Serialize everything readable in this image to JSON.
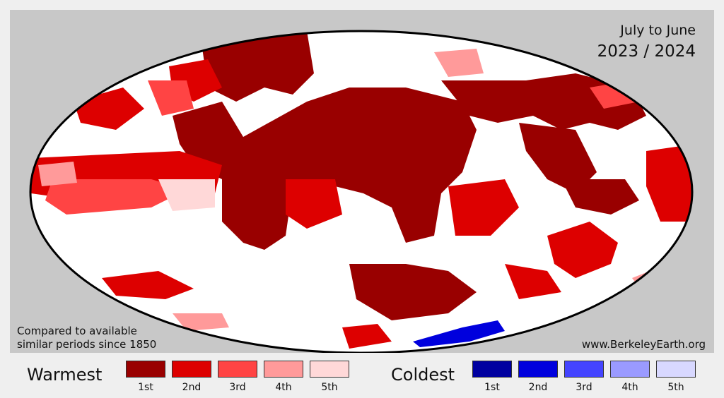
{
  "header": {
    "period": "July to June",
    "years": "2023 / 2024"
  },
  "footer": {
    "note_line1": "Compared to available",
    "note_line2": "similar periods since 1850",
    "website": "www.BerkeleyEarth.org"
  },
  "legend": {
    "warm_title": "Warmest",
    "cold_title": "Coldest",
    "ranks": [
      "1st",
      "2nd",
      "3rd",
      "4th",
      "5th"
    ],
    "warm_colors": [
      "#990000",
      "#dd0000",
      "#ff4444",
      "#ff9a9a",
      "#ffd8d8"
    ],
    "cold_colors": [
      "#0000a0",
      "#0000dd",
      "#4444ff",
      "#9a9aff",
      "#d8d8ff"
    ]
  },
  "map": {
    "projection": "mollweide",
    "background_color": "#c8c8c8",
    "ocean_base_color": "#ffffff"
  }
}
